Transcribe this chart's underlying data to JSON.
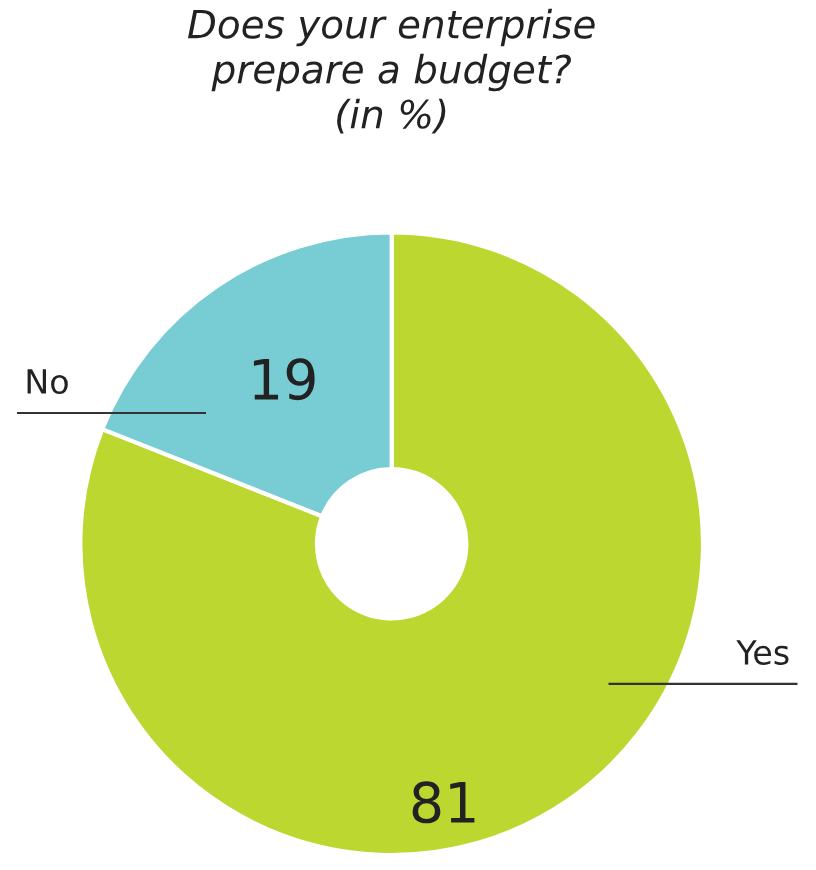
{
  "chart_data": {
    "type": "donut",
    "title": "Does your enterprise\nprepare a budget?\n(in %)",
    "categories": [
      "Yes",
      "No"
    ],
    "values": [
      81,
      19
    ],
    "colors": [
      "#bdd731",
      "#77cdd3"
    ],
    "data_labels": true
  }
}
